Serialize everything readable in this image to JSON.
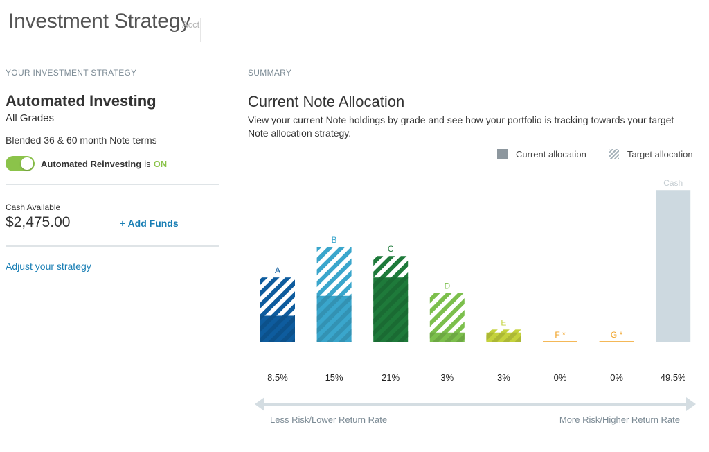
{
  "header": {
    "title": "Investment Strategy",
    "subtitle": "Acct"
  },
  "strategy": {
    "section_label": "YOUR INVESTMENT STRATEGY",
    "name": "Automated Investing",
    "grades": "All Grades",
    "terms": "Blended 36 & 60 month Note terms",
    "reinvest_label": "Automated Reinvesting",
    "reinvest_is": "is",
    "reinvest_state": "ON",
    "cash_label": "Cash Available",
    "cash_value": "$2,475.00",
    "add_funds": "+ Add Funds",
    "adjust_link": "Adjust your strategy"
  },
  "summary": {
    "section_label": "SUMMARY",
    "title": "Current Note Allocation",
    "description": "View your current Note holdings by grade and see how your portfolio is tracking towards your target Note allocation strategy.",
    "legend_current": "Current allocation",
    "legend_target": "Target allocation",
    "axis_left": "Less Risk/Lower Return Rate",
    "axis_right": "More Risk/Higher Return Rate"
  },
  "chart_data": {
    "type": "bar",
    "categories": [
      "A",
      "B",
      "C",
      "D",
      "E",
      "F *",
      "G *",
      "Cash"
    ],
    "series": [
      {
        "name": "Current allocation",
        "values": [
          8.5,
          15,
          21,
          3,
          3,
          0,
          0,
          49.5
        ]
      },
      {
        "name": "Target allocation",
        "values": [
          21,
          31,
          28,
          16,
          4,
          0,
          0,
          49.5
        ]
      }
    ],
    "value_labels": [
      "8.5%",
      "15%",
      "21%",
      "3%",
      "3%",
      "0%",
      "0%",
      "49.5%"
    ],
    "colors": [
      "#0e5c9e",
      "#3aa6cc",
      "#1e7a3a",
      "#7cbf4c",
      "#c4d23c",
      "#f0a020",
      "#f0a020",
      "#cdd9e0"
    ],
    "label_colors": [
      "#0e5c9e",
      "#3aa6cc",
      "#1e7a3a",
      "#7cbf4c",
      "#c4d23c",
      "#f0a020",
      "#f0a020",
      "#c5cdd2"
    ],
    "legend": "top-right",
    "grid": false
  }
}
